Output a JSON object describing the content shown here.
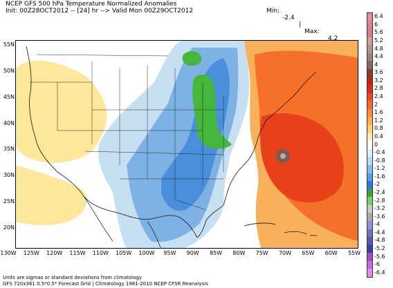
{
  "header": {
    "title": "NCEP GFS 500 hPa Temperature Normalized Anomalies",
    "subtitle": "Init: 00Z28OCT2012 -- [24] hr --> Valid Mon 00Z29OCT2012",
    "min_label": "Min:",
    "min_value": "-2.4",
    "separator": "|",
    "max_label": "Max:",
    "max_value": "4.2"
  },
  "map": {
    "lat_labels": [
      "55N",
      "50N",
      "45N",
      "40N",
      "35N",
      "30N",
      "25N",
      "20N"
    ],
    "lon_labels": [
      "130W",
      "125W",
      "120W",
      "115W",
      "110W",
      "105W",
      "100W",
      "95W",
      "90W",
      "85W",
      "80W",
      "75W",
      "70W",
      "65W",
      "60W",
      "55W"
    ],
    "colors": {
      "strong_warm": "#e8401b",
      "warm": "#f5712a",
      "mild_warm": "#f8b05a",
      "light_warm": "#fde79a",
      "neutral": "#ffffff",
      "cool": "#c6e0f2",
      "cooler": "#7eb2e4",
      "cold": "#4a8fdc",
      "coldest": "#1f6bd4",
      "green": "#45b83b",
      "dark_green": "#2e8b2a",
      "storm_core": "#7a5a52"
    }
  },
  "colorbar": {
    "ticks": [
      "6.4",
      "6",
      "5.6",
      "5.2",
      "4.8",
      "4.4",
      "4",
      "3.6",
      "3.2",
      "2.8",
      "2.4",
      "2",
      "1.6",
      "1.2",
      "0.8",
      "0.4",
      "0",
      "-0.4",
      "-0.8",
      "-1.2",
      "-1.6",
      "-2",
      "-2.4",
      "-2.8",
      "-3.2",
      "-3.6",
      "-4",
      "-4.4",
      "-4.8",
      "-5.2",
      "-5.6",
      "-6",
      "-6.4"
    ],
    "colors": [
      "#e38aa3",
      "#d97f91",
      "#d77a86",
      "#c9a09a",
      "#b39190",
      "#9b8480",
      "#7e6a66",
      "#8b3a2a",
      "#c2231a",
      "#dd2b14",
      "#ee4a1f",
      "#f26b2a",
      "#f68d3a",
      "#f9b04f",
      "#fcd171",
      "#fdf1b5",
      "#ffffff",
      "#dbeefa",
      "#b6d8f2",
      "#86bce8",
      "#5a9de0",
      "#2d7cd9",
      "#3ca53a",
      "#7ccd72",
      "#c9c9c9",
      "#a8a8a8",
      "#8f8fd4",
      "#7272c4",
      "#5757b5",
      "#3d3da3",
      "#a14bc4",
      "#c56ad6",
      "#e08ee6"
    ]
  },
  "footer": {
    "line1": "Units are sigmas or standard deviations from climatology",
    "line2": "GFS 720x361 0.5*0.5* Forecast Grid | Climatology 1981-2010 NCEP CFSR Reanalysis"
  }
}
